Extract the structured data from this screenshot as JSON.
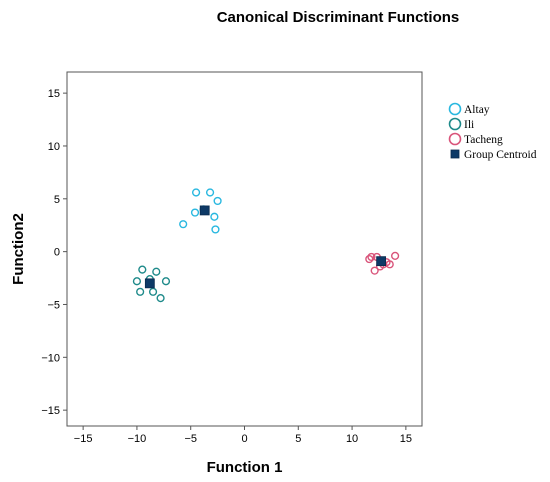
{
  "chart_data": {
    "type": "scatter",
    "title": "Canonical Discriminant Functions",
    "xlabel": "Function 1",
    "ylabel": "Function2",
    "xlim": [
      -16.5,
      16.5
    ],
    "ylim": [
      -16.5,
      17
    ],
    "xticks": [
      -15,
      -10,
      -5,
      0,
      5,
      10,
      15
    ],
    "yticks": [
      15,
      10,
      5,
      0,
      -5,
      -10,
      -15
    ],
    "grid": false,
    "legend_position": "right",
    "series": [
      {
        "name": "Altay",
        "marker": "open-circle",
        "color": "#29b8e0",
        "points": [
          [
            -4.5,
            5.6
          ],
          [
            -3.2,
            5.6
          ],
          [
            -2.5,
            4.8
          ],
          [
            -4.6,
            3.7
          ],
          [
            -3.8,
            4.0
          ],
          [
            -2.8,
            3.3
          ],
          [
            -5.7,
            2.6
          ],
          [
            -2.7,
            2.1
          ]
        ]
      },
      {
        "name": "Ili",
        "marker": "open-circle",
        "color": "#1e8a8a",
        "points": [
          [
            -9.5,
            -1.7
          ],
          [
            -8.2,
            -1.9
          ],
          [
            -10.0,
            -2.8
          ],
          [
            -8.8,
            -2.6
          ],
          [
            -7.3,
            -2.8
          ],
          [
            -9.7,
            -3.8
          ],
          [
            -8.5,
            -3.8
          ],
          [
            -7.8,
            -4.4
          ]
        ]
      },
      {
        "name": "Tacheng",
        "marker": "open-circle",
        "color": "#d9547a",
        "points": [
          [
            11.8,
            -0.5
          ],
          [
            12.3,
            -0.5
          ],
          [
            14.0,
            -0.4
          ],
          [
            11.6,
            -0.7
          ],
          [
            13.2,
            -1.0
          ],
          [
            12.9,
            -1.2
          ],
          [
            13.5,
            -1.2
          ],
          [
            12.6,
            -1.4
          ],
          [
            12.1,
            -1.8
          ]
        ]
      },
      {
        "name": "Group Centroid",
        "marker": "filled-square",
        "color": "#0d3966",
        "points": [
          [
            -3.7,
            3.9
          ],
          [
            -8.8,
            -3.0
          ],
          [
            12.7,
            -0.9
          ]
        ]
      }
    ]
  }
}
